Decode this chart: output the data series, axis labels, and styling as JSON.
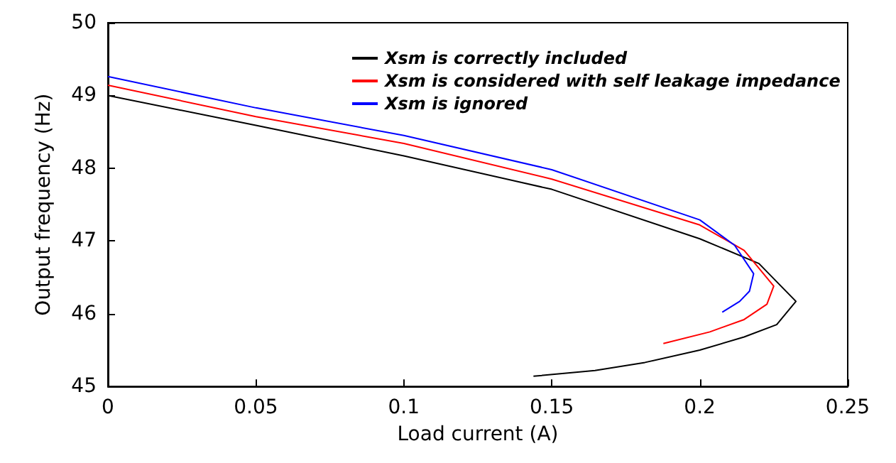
{
  "chart_data": {
    "type": "line",
    "xlabel": "Load current (A)",
    "ylabel": "Output frequency (Hz)",
    "xlim": [
      0,
      0.25
    ],
    "xticks": [
      0,
      0.05,
      0.1,
      0.15,
      0.2,
      0.25
    ],
    "ylim": [
      45,
      50
    ],
    "yticks": [
      45,
      46,
      47,
      48,
      49,
      50
    ],
    "grid": false,
    "legend": "top",
    "marker": "none",
    "line_style": "solid",
    "series": [
      {
        "name": "Xsm is correctly included",
        "color": "#000000",
        "x": [
          0,
          0.05,
          0.1,
          0.15,
          0.2,
          0.22,
          0.2325,
          0.226,
          0.215,
          0.2,
          0.1815,
          0.1646,
          0.1438
        ],
        "values": [
          49.0,
          48.59,
          48.17,
          47.71,
          47.03,
          46.69,
          46.17,
          45.85,
          45.68,
          45.5,
          45.33,
          45.22,
          45.14
        ]
      },
      {
        "name": "Xsm is considered with self leakage impedance",
        "color": "#ff0000",
        "x": [
          0,
          0.05,
          0.1,
          0.15,
          0.2,
          0.215,
          0.225,
          0.2227,
          0.215,
          0.2034,
          0.1877
        ],
        "values": [
          49.14,
          48.71,
          48.34,
          47.85,
          47.22,
          46.87,
          46.38,
          46.13,
          45.92,
          45.75,
          45.59
        ]
      },
      {
        "name": "Xsm is ignored",
        "color": "#0000ff",
        "x": [
          0,
          0.05,
          0.1,
          0.15,
          0.2,
          0.2118,
          0.2182,
          0.2168,
          0.2135,
          0.2076
        ],
        "values": [
          49.26,
          48.83,
          48.45,
          47.98,
          47.29,
          46.94,
          46.55,
          46.31,
          46.17,
          46.02
        ]
      }
    ]
  }
}
